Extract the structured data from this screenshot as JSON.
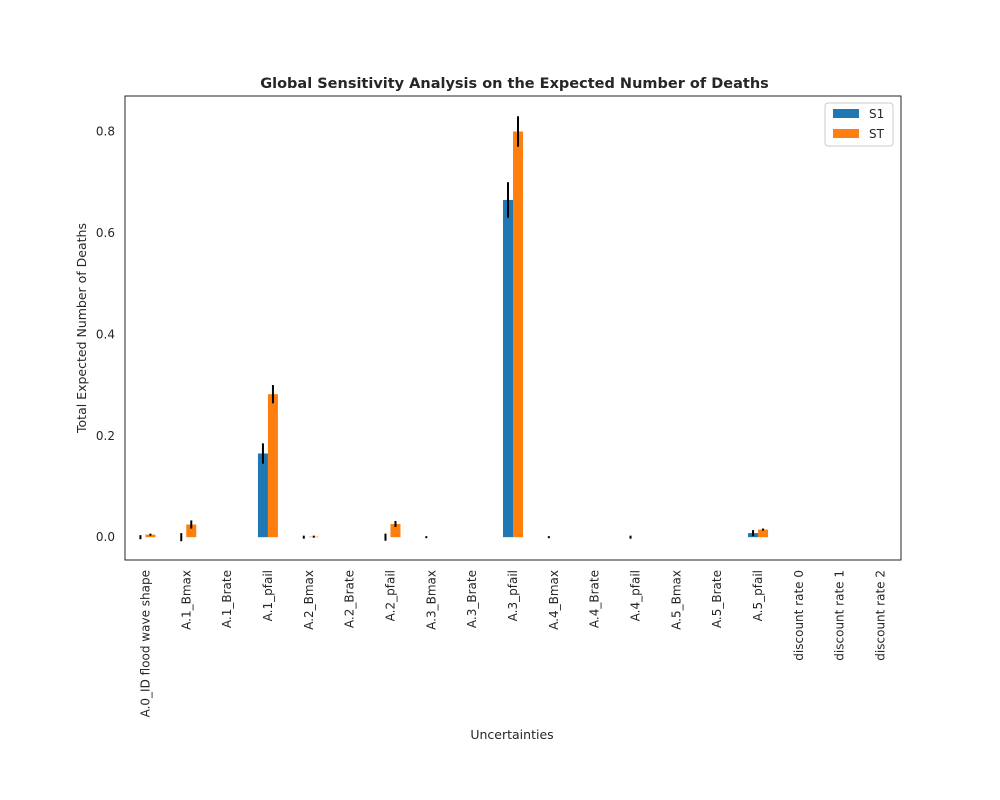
{
  "chart_data": {
    "type": "bar",
    "title": "Global Sensitivity Analysis on the Expected Number of Deaths",
    "xlabel": "Uncertainties",
    "ylabel": "Total Expected Number of Deaths",
    "ylim": [
      -0.045,
      0.87
    ],
    "yticks": [
      0.0,
      0.2,
      0.4,
      0.6,
      0.8
    ],
    "ytick_labels": [
      "0.0",
      "0.2",
      "0.4",
      "0.6",
      "0.8"
    ],
    "legend_position": "top-right",
    "categories": [
      "A.0_ID flood wave shape",
      "A.1_Bmax",
      "A.1_Brate",
      "A.1_pfail",
      "A.2_Bmax",
      "A.2_Brate",
      "A.2_pfail",
      "A.3_Bmax",
      "A.3_Brate",
      "A.3_pfail",
      "A.4_Bmax",
      "A.4_Brate",
      "A.4_pfail",
      "A.5_Bmax",
      "A.5_Brate",
      "A.5_pfail",
      "discount rate 0",
      "discount rate 1",
      "discount rate 2"
    ],
    "series": [
      {
        "name": "S1",
        "color": "#1f77b4",
        "values": [
          0.0,
          0.0,
          0.0,
          0.165,
          0.0,
          0.0,
          0.0,
          0.0,
          0.0,
          0.665,
          0.0,
          0.0,
          0.0,
          0.0,
          0.0,
          0.008,
          0.0,
          0.0,
          0.0
        ],
        "errors": [
          0.004,
          0.008,
          0.0,
          0.02,
          0.003,
          0.0,
          0.007,
          0.002,
          0.0,
          0.035,
          0.002,
          0.0,
          0.003,
          0.0,
          0.0,
          0.006,
          0.0,
          0.0,
          0.0
        ]
      },
      {
        "name": "ST",
        "color": "#ff7f0e",
        "values": [
          0.005,
          0.025,
          0.0,
          0.282,
          0.001,
          0.0,
          0.026,
          0.0,
          0.0,
          0.8,
          0.0,
          0.0,
          0.0,
          0.0,
          0.0,
          0.015,
          0.0,
          0.0,
          0.0
        ],
        "errors": [
          0.002,
          0.008,
          0.0,
          0.018,
          0.002,
          0.0,
          0.006,
          0.0,
          0.0,
          0.03,
          0.0,
          0.0,
          0.0,
          0.0,
          0.0,
          0.002,
          0.0,
          0.0,
          0.0
        ]
      }
    ]
  }
}
